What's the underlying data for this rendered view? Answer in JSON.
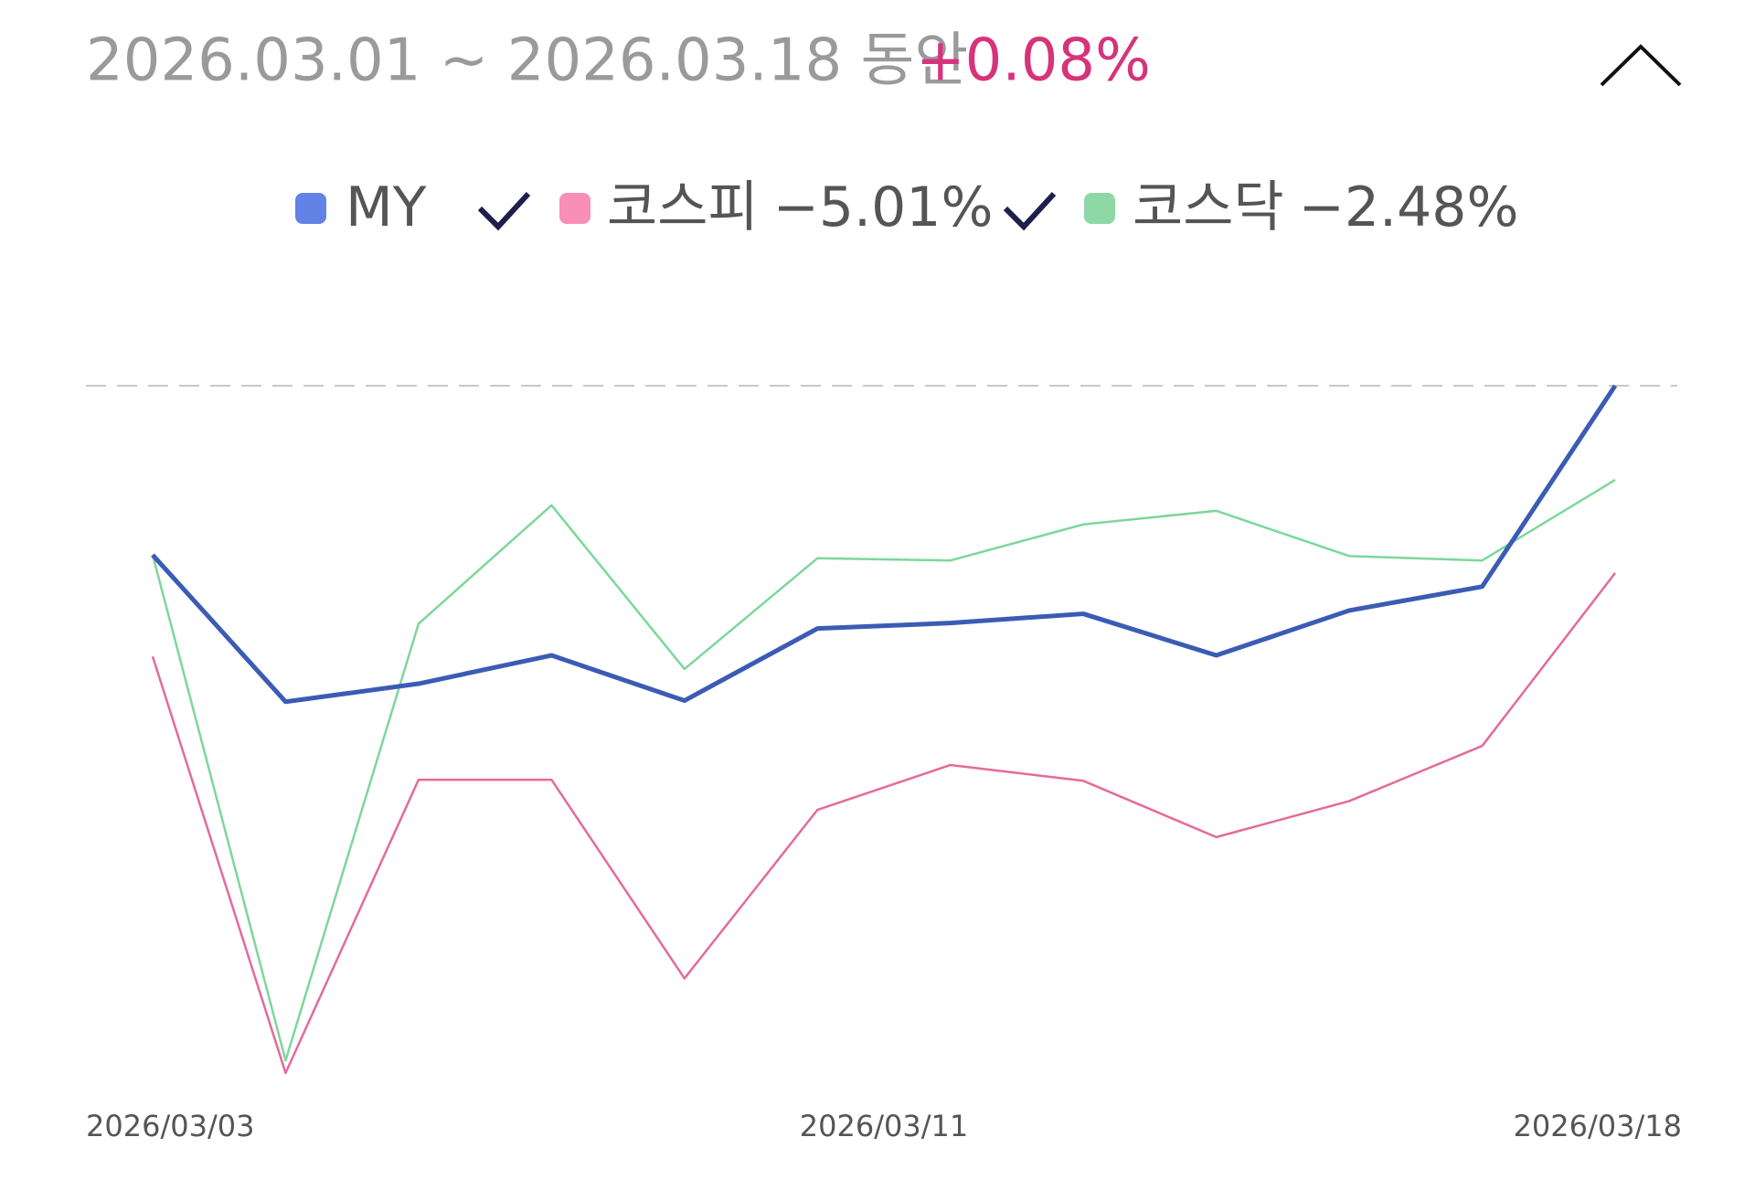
{
  "header": {
    "period": "2026.03.01 ~ 2026.03.18 동안",
    "return": "+0.08%"
  },
  "chart_data": {
    "type": "line",
    "categories": [
      "2026/03/03",
      null,
      null,
      null,
      null,
      null,
      "2026/03/11",
      null,
      null,
      null,
      null,
      "2026/03/18"
    ],
    "ylim": [
      -19,
      0.08
    ],
    "series": [
      {
        "name": "MY",
        "color": "#3b5bb5",
        "legend_color": "#6283e6",
        "values": [
          -4.52,
          -8.51,
          -8.02,
          -7.25,
          -8.48,
          -6.52,
          -6.37,
          -6.12,
          -7.25,
          -6.03,
          -5.38,
          0.08
        ]
      },
      {
        "name": "코스피",
        "change": "−5.01%",
        "color": "#e46a9c",
        "legend_color": "#f78fb6",
        "values": [
          -7.28,
          -18.6,
          -10.63,
          -10.63,
          -16.03,
          -11.45,
          -10.23,
          -10.66,
          -12.19,
          -11.21,
          -9.71,
          -5.01
        ]
      },
      {
        "name": "코스닥",
        "change": "−2.48%",
        "color": "#7dd79a",
        "legend_color": "#8ed8a6",
        "values": [
          -4.52,
          -18.26,
          -6.39,
          -3.17,
          -7.62,
          -4.61,
          -4.67,
          -3.69,
          -3.32,
          -4.55,
          -4.67,
          -2.48
        ]
      }
    ]
  }
}
